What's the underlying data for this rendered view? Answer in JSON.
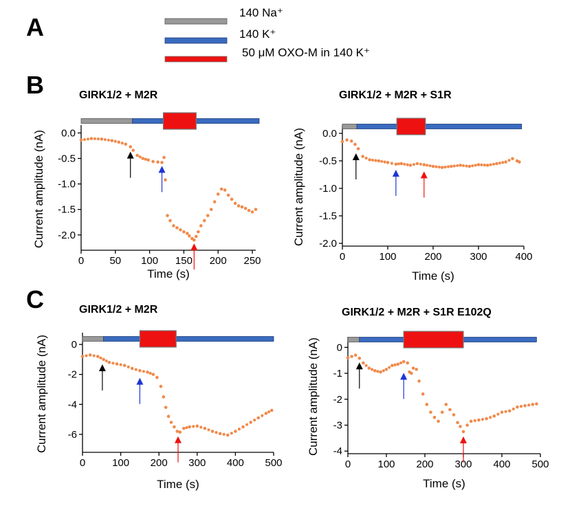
{
  "figure": {
    "panel_letters": [
      "A",
      "B",
      "C"
    ],
    "legend": [
      {
        "label": "140 Na⁺",
        "color": "#999999"
      },
      {
        "label": "140 K⁺",
        "color": "#3a6bbf"
      },
      {
        "label": "50 μM OXO-M in 140 K⁺",
        "color": "#ee1111"
      }
    ],
    "colors": {
      "data": "#f08a4b",
      "na_bar": "#999999",
      "k_bar": "#3a6bbf",
      "oxo_box": "#ee1111",
      "arrow_black": "#000000",
      "arrow_blue": "#1f35d6",
      "arrow_red": "#ee1111"
    }
  },
  "chart_data": [
    {
      "id": "B-left",
      "type": "scatter",
      "title": "GIRK1/2 + M2R",
      "xlabel": "Time (s)",
      "ylabel": "Current amplitude (nA)",
      "xlim": [
        0,
        255
      ],
      "ylim": [
        -2.3,
        0.1
      ],
      "xticks": [
        0,
        50,
        100,
        150,
        200,
        250
      ],
      "xtick_labels": [
        "0",
        "50",
        "100",
        "150",
        "200",
        "250"
      ],
      "yticks": [
        0.0,
        -0.5,
        -1.0,
        -1.5,
        -2.0
      ],
      "ytick_labels": [
        "0.0",
        "-0.5",
        "-1.0",
        "-1.5",
        "-2.0"
      ],
      "solutions": [
        {
          "solution": "140 Na+",
          "start": 0,
          "end": 75
        },
        {
          "solution": "140 K+",
          "start": 75,
          "end": 260
        },
        {
          "solution": "OXO-M",
          "start": 120,
          "end": 168
        }
      ],
      "arrows": [
        {
          "color": "black",
          "t": 72,
          "value": -0.3
        },
        {
          "color": "blue",
          "t": 118,
          "value": -0.58
        },
        {
          "color": "red",
          "t": 165,
          "value": -2.1
        }
      ],
      "series": [
        {
          "name": "current",
          "t": [
            0,
            15,
            30,
            45,
            55,
            65,
            72,
            76,
            82,
            90,
            98,
            105,
            112,
            118,
            121,
            123,
            126,
            130,
            135,
            140,
            145,
            150,
            155,
            158,
            162,
            165,
            168,
            171,
            175,
            180,
            185,
            190,
            195,
            200,
            205,
            210,
            215,
            220,
            225,
            230,
            235,
            240,
            245,
            250,
            255
          ],
          "values": [
            -0.14,
            -0.11,
            -0.12,
            -0.15,
            -0.18,
            -0.22,
            -0.27,
            -0.34,
            -0.44,
            -0.5,
            -0.53,
            -0.56,
            -0.57,
            -0.58,
            -0.48,
            -0.92,
            -1.62,
            -1.72,
            -1.82,
            -1.86,
            -1.9,
            -1.94,
            -1.97,
            -2.02,
            -2.07,
            -2.1,
            -2.03,
            -1.94,
            -1.82,
            -1.72,
            -1.62,
            -1.5,
            -1.35,
            -1.2,
            -1.1,
            -1.12,
            -1.22,
            -1.3,
            -1.38,
            -1.43,
            -1.45,
            -1.48,
            -1.52,
            -1.55,
            -1.5
          ]
        }
      ]
    },
    {
      "id": "B-right",
      "type": "scatter",
      "title": "GIRK1/2 + M2R + S1R",
      "xlabel": "Time (s)",
      "ylabel": "Current amplitude (nA)",
      "xlim": [
        0,
        400
      ],
      "ylim": [
        -2.05,
        0.1
      ],
      "xticks": [
        0,
        100,
        200,
        300,
        400
      ],
      "xtick_labels": [
        "0",
        "100",
        "200",
        "300",
        "400"
      ],
      "yticks": [
        0.0,
        -0.5,
        -1.0,
        -1.5,
        -2.0
      ],
      "ytick_labels": [
        "0.0",
        "-0.5",
        "-1.0",
        "-1.5",
        "-2.0"
      ],
      "solutions": [
        {
          "solution": "140 Na+",
          "start": 0,
          "end": 32
        },
        {
          "solution": "140 K+",
          "start": 32,
          "end": 395
        },
        {
          "solution": "OXO-M",
          "start": 120,
          "end": 183
        }
      ],
      "arrows": [
        {
          "color": "black",
          "t": 30,
          "value": -0.3
        },
        {
          "color": "blue",
          "t": 118,
          "value": -0.6
        },
        {
          "color": "red",
          "t": 180,
          "value": -0.63
        }
      ],
      "series": [
        {
          "name": "current",
          "t": [
            0,
            10,
            20,
            28,
            35,
            45,
            60,
            80,
            100,
            118,
            130,
            150,
            165,
            180,
            200,
            220,
            240,
            260,
            280,
            300,
            320,
            340,
            360,
            375,
            385,
            390
          ],
          "values": [
            -0.15,
            -0.12,
            -0.14,
            -0.2,
            -0.28,
            -0.42,
            -0.48,
            -0.5,
            -0.53,
            -0.56,
            -0.55,
            -0.58,
            -0.55,
            -0.57,
            -0.6,
            -0.62,
            -0.6,
            -0.58,
            -0.6,
            -0.57,
            -0.58,
            -0.55,
            -0.52,
            -0.46,
            -0.5,
            -0.52
          ]
        }
      ]
    },
    {
      "id": "C-left",
      "type": "scatter",
      "title": "GIRK1/2 + M2R",
      "xlabel": "Time (s)",
      "ylabel": "Current amplitude (nA)",
      "xlim": [
        0,
        500
      ],
      "ylim": [
        -7.2,
        0.6
      ],
      "xticks": [
        0,
        100,
        200,
        300,
        400,
        500
      ],
      "xtick_labels": [
        "0",
        "100",
        "200",
        "300",
        "400",
        "500"
      ],
      "yticks": [
        0,
        -2,
        -4,
        -6
      ],
      "ytick_labels": [
        "0",
        "-2",
        "-4",
        "-6"
      ],
      "solutions": [
        {
          "solution": "140 Na+",
          "start": 0,
          "end": 55
        },
        {
          "solution": "140 K+",
          "start": 55,
          "end": 500
        },
        {
          "solution": "OXO-M",
          "start": 150,
          "end": 245
        }
      ],
      "arrows": [
        {
          "color": "black",
          "t": 52,
          "value": -1.1
        },
        {
          "color": "blue",
          "t": 150,
          "value": -2.0
        },
        {
          "color": "red",
          "t": 250,
          "value": -5.9
        }
      ],
      "series": [
        {
          "name": "current",
          "t": [
            0,
            20,
            40,
            55,
            70,
            90,
            110,
            130,
            150,
            170,
            185,
            195,
            205,
            212,
            218,
            225,
            232,
            240,
            248,
            255,
            265,
            280,
            300,
            320,
            340,
            360,
            380,
            400,
            420,
            440,
            460,
            480,
            495
          ],
          "values": [
            -0.8,
            -0.7,
            -0.8,
            -1.0,
            -1.2,
            -1.3,
            -1.4,
            -1.6,
            -1.75,
            -1.85,
            -2.0,
            -2.2,
            -2.8,
            -3.5,
            -4.2,
            -4.8,
            -5.2,
            -5.5,
            -5.8,
            -5.85,
            -5.6,
            -5.5,
            -5.45,
            -5.6,
            -5.8,
            -5.95,
            -6.05,
            -5.8,
            -5.5,
            -5.2,
            -4.9,
            -4.6,
            -4.4
          ]
        }
      ]
    },
    {
      "id": "C-right",
      "type": "scatter",
      "title": "GIRK1/2 + M2R + S1R E102Q",
      "xlabel": "Time (s)",
      "ylabel": "Current amplitude (nA)",
      "xlim": [
        0,
        500
      ],
      "ylim": [
        -4.1,
        0.3
      ],
      "xticks": [
        0,
        100,
        200,
        300,
        400,
        500
      ],
      "xtick_labels": [
        "0",
        "100",
        "200",
        "300",
        "400",
        "500"
      ],
      "yticks": [
        0,
        -1,
        -2,
        -3,
        -4
      ],
      "ytick_labels": [
        "0",
        "-1",
        "-2",
        "-3",
        "-4"
      ],
      "solutions": [
        {
          "solution": "140 Na+",
          "start": 0,
          "end": 30
        },
        {
          "solution": "140 K+",
          "start": 30,
          "end": 490
        },
        {
          "solution": "OXO-M",
          "start": 145,
          "end": 300
        }
      ],
      "arrows": [
        {
          "color": "black",
          "t": 30,
          "value": -0.45
        },
        {
          "color": "blue",
          "t": 145,
          "value": -0.85
        },
        {
          "color": "red",
          "t": 300,
          "value": -3.3
        }
      ],
      "series": [
        {
          "name": "current",
          "t": [
            0,
            10,
            20,
            30,
            40,
            55,
            70,
            85,
            100,
            115,
            130,
            145,
            155,
            160,
            165,
            170,
            178,
            185,
            195,
            205,
            215,
            225,
            235,
            245,
            255,
            265,
            275,
            285,
            292,
            300,
            310,
            320,
            340,
            360,
            380,
            400,
            420,
            440,
            460,
            480,
            490
          ],
          "values": [
            -0.4,
            -0.35,
            -0.3,
            -0.42,
            -0.6,
            -0.8,
            -0.9,
            -0.95,
            -0.85,
            -0.7,
            -0.65,
            -0.55,
            -0.6,
            -0.95,
            -1.0,
            -0.8,
            -0.85,
            -1.3,
            -1.8,
            -2.2,
            -2.5,
            -2.7,
            -2.85,
            -2.5,
            -2.2,
            -2.4,
            -2.6,
            -2.9,
            -3.05,
            -3.25,
            -3.0,
            -2.85,
            -2.8,
            -2.75,
            -2.65,
            -2.5,
            -2.45,
            -2.3,
            -2.25,
            -2.2,
            -2.18
          ]
        }
      ]
    }
  ]
}
